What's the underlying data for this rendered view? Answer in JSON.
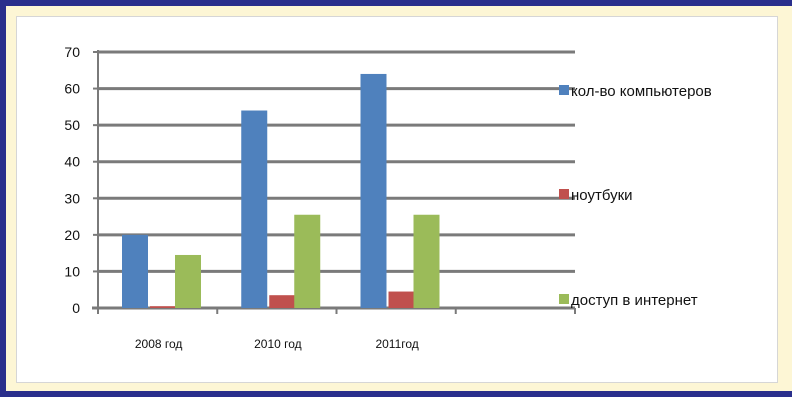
{
  "chart_data": {
    "type": "bar",
    "categories": [
      "2008 год",
      "2010 год",
      "2011год"
    ],
    "series": [
      {
        "name": "кол-во компьютеров",
        "values": [
          20,
          54,
          64
        ],
        "color": "#4f81bd"
      },
      {
        "name": "ноутбуки",
        "values": [
          0.5,
          3.5,
          4.5
        ],
        "color": "#c0504d"
      },
      {
        "name": "доступ в интернет",
        "values": [
          14.5,
          25.5,
          25.5
        ],
        "color": "#9bbb59"
      }
    ],
    "ylim": [
      0,
      70
    ],
    "yticks": [
      "0",
      "10",
      "20",
      "30",
      "40",
      "50",
      "60",
      "70"
    ],
    "grid": true,
    "legend_position": "right"
  }
}
